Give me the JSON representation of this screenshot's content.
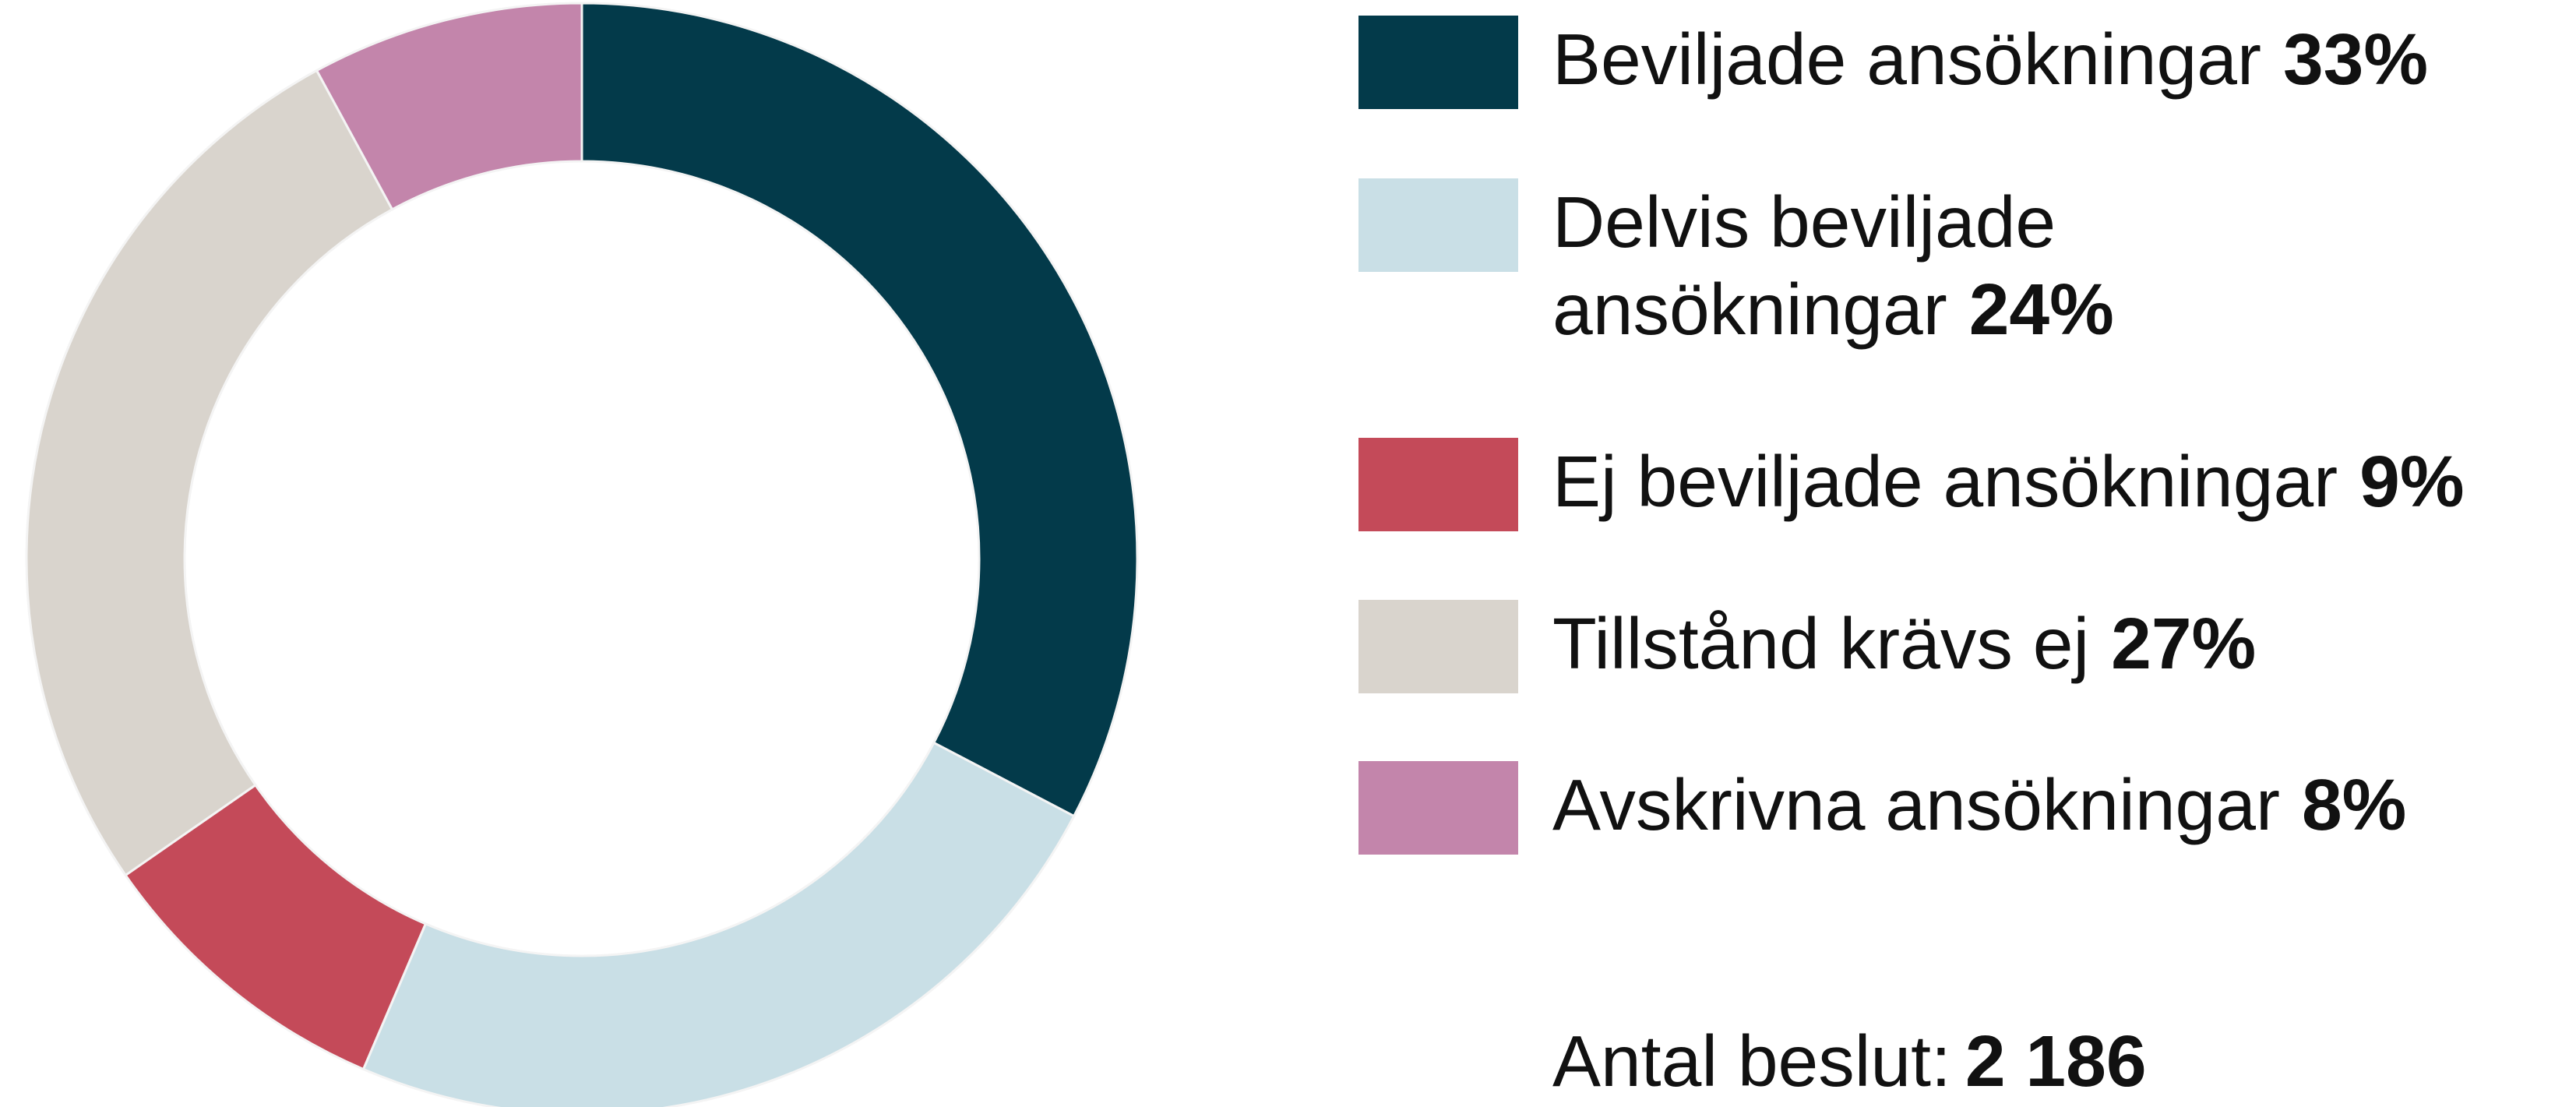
{
  "chart_data": {
    "type": "donut",
    "categories": [
      "Beviljade ansökningar",
      "Delvis beviljade ansökningar",
      "Ej beviljade ansökningar",
      "Tillstånd krävs ej",
      "Avskrivna ansökningar"
    ],
    "values": [
      33,
      24,
      9,
      27,
      8
    ],
    "value_labels": [
      "33%",
      "24%",
      "9%",
      "27%",
      "8%"
    ],
    "colors": [
      "#033a4a",
      "#c9dfe6",
      "#c44a59",
      "#d9d4cd",
      "#c385ab"
    ],
    "total_label": "Antal beslut:",
    "total_value": "2 186"
  }
}
